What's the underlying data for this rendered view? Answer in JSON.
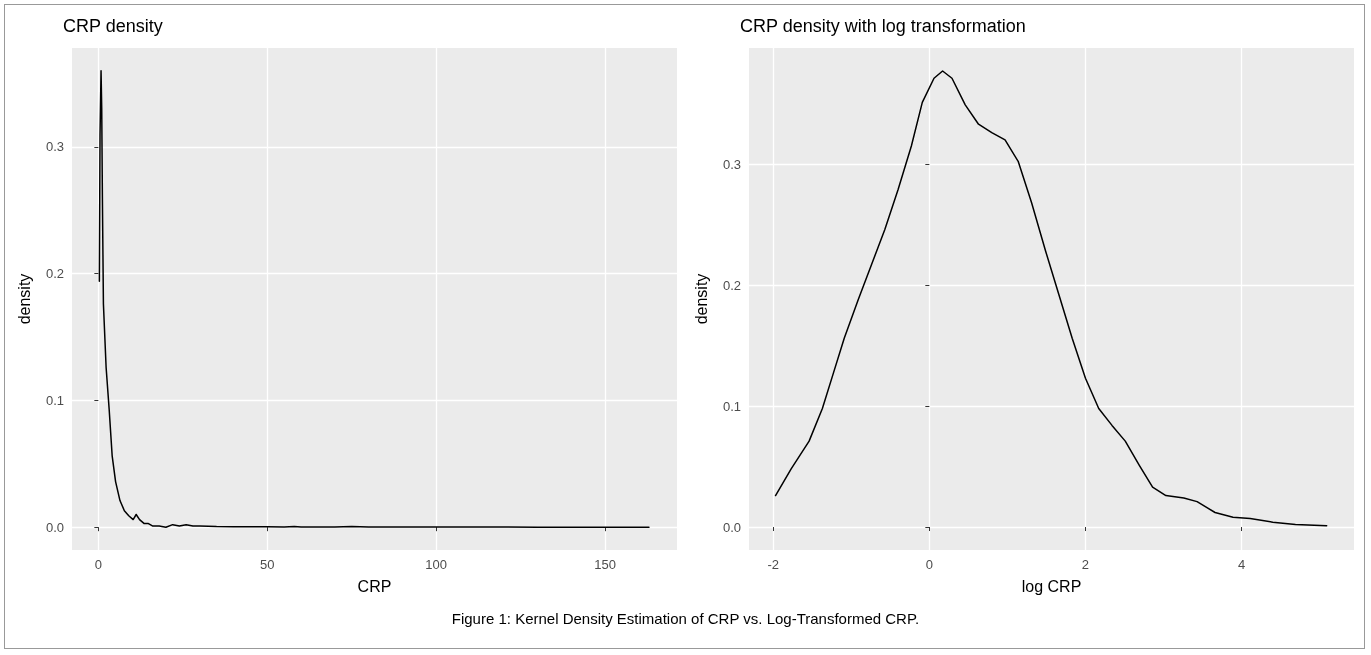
{
  "chart_data": [
    {
      "type": "line",
      "title": "CRP density",
      "xlabel": "CRP",
      "ylabel": "density",
      "xlim": [
        -7.8,
        171.3
      ],
      "xticks": [
        0,
        50,
        100,
        150
      ],
      "ylim": [
        -0.018,
        0.378
      ],
      "yticks": [
        {
          "value": 0,
          "label": "0.0"
        },
        0.1,
        0.2,
        0.3
      ],
      "grid": true,
      "marker": "none",
      "line_style": "solid",
      "series": [
        {
          "color": "#000000",
          "x": [
            0.3,
            0.5,
            0.8,
            1.0,
            1.2,
            1.5,
            2.3,
            3.2,
            4.1,
            5.1,
            6.4,
            7.7,
            9.0,
            10.3,
            11.2,
            12.2,
            13.5,
            14.7,
            16,
            18,
            20,
            22,
            24,
            26,
            28,
            30,
            35,
            40,
            45,
            50,
            55,
            58,
            60,
            70,
            75,
            80,
            90,
            100,
            110,
            120,
            130,
            140,
            150,
            163
          ],
          "values": [
            0.194,
            0.31,
            0.36,
            0.33,
            0.26,
            0.176,
            0.126,
            0.093,
            0.056,
            0.036,
            0.021,
            0.013,
            0.009,
            0.006,
            0.01,
            0.006,
            0.003,
            0.003,
            0.001,
            0.001,
            0.0,
            0.002,
            0.001,
            0.002,
            0.001,
            0.001,
            0.0005,
            0.0003,
            0.0003,
            0.0003,
            0.0002,
            0.0005,
            0.0002,
            0.0002,
            0.0005,
            0.0001,
            0.0001,
            0.0001,
            0.0001,
            0.0001,
            0.0,
            0.0,
            0.0,
            0.0
          ]
        }
      ]
    },
    {
      "type": "line",
      "title": "CRP density with log transformation",
      "xlabel": "log CRP",
      "ylabel": "density",
      "xlim": [
        -2.31,
        5.44
      ],
      "xticks": [
        -2,
        0,
        2,
        4
      ],
      "ylim": [
        -0.019,
        0.396
      ],
      "yticks": [
        {
          "value": 0,
          "label": "0.0"
        },
        0.1,
        0.2,
        0.3
      ],
      "grid": true,
      "marker": "none",
      "line_style": "solid",
      "annotations": [
        "Figure 1: Kernel Density Estimation of CRP vs. Log-Transformed CRP."
      ],
      "series": [
        {
          "color": "#000000",
          "x": [
            -1.97,
            -1.77,
            -1.54,
            -1.37,
            -1.23,
            -1.09,
            -0.91,
            -0.74,
            -0.57,
            -0.4,
            -0.23,
            -0.09,
            0.06,
            0.17,
            0.29,
            0.46,
            0.63,
            0.8,
            0.97,
            1.14,
            1.31,
            1.49,
            1.66,
            1.83,
            2.0,
            2.17,
            2.34,
            2.51,
            2.69,
            2.86,
            3.03,
            3.26,
            3.43,
            3.66,
            3.89,
            4.11,
            4.4,
            4.69,
            5.09
          ],
          "values": [
            0.026,
            0.048,
            0.071,
            0.098,
            0.127,
            0.156,
            0.188,
            0.217,
            0.246,
            0.279,
            0.315,
            0.351,
            0.371,
            0.377,
            0.371,
            0.349,
            0.333,
            0.326,
            0.32,
            0.302,
            0.268,
            0.228,
            0.192,
            0.156,
            0.123,
            0.098,
            0.084,
            0.071,
            0.051,
            0.033,
            0.026,
            0.024,
            0.021,
            0.012,
            0.008,
            0.007,
            0.004,
            0.002,
            0.001
          ]
        }
      ]
    }
  ]
}
